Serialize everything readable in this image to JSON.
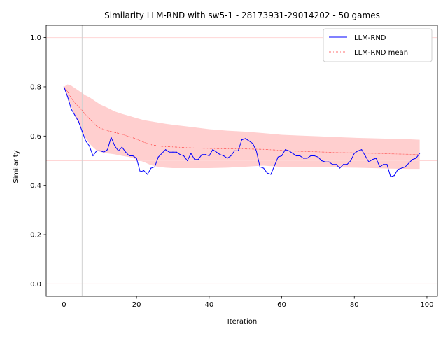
{
  "chart_data": {
    "type": "line",
    "title": "Similarity LLM-RND with sw5-1 - 28173931-29014202 - 50 games",
    "xlabel": "Iteration",
    "ylabel": "Similarity",
    "xlim": [
      -4.9,
      102.9
    ],
    "ylim": [
      -0.05,
      1.05
    ],
    "x_ticks": [
      0,
      20,
      40,
      60,
      80,
      100
    ],
    "y_ticks": [
      0.0,
      0.2,
      0.4,
      0.6,
      0.8,
      1.0
    ],
    "x_tick_labels": [
      "0",
      "20",
      "40",
      "60",
      "80",
      "100"
    ],
    "y_tick_labels": [
      "0.0",
      "0.2",
      "0.4",
      "0.6",
      "0.8",
      "1.0"
    ],
    "hlines": [
      0.0,
      0.5,
      1.0
    ],
    "vline": 5,
    "legend_position": "top-right",
    "legend": [
      "LLM-RND",
      "LLM-RND mean"
    ],
    "colors": {
      "series": "#0000ff",
      "mean": "#ff4040",
      "band": "#ffcccc",
      "guide_red": "#ffd6d6",
      "guide_gray": "#d0d0d0"
    },
    "series": [
      {
        "name": "LLM-RND",
        "x": [
          0,
          1,
          2,
          3,
          4,
          5,
          6,
          7,
          8,
          9,
          10,
          11,
          12,
          13,
          14,
          15,
          16,
          17,
          18,
          19,
          20,
          21,
          22,
          23,
          24,
          25,
          26,
          27,
          28,
          29,
          30,
          31,
          32,
          33,
          34,
          35,
          36,
          37,
          38,
          39,
          40,
          41,
          42,
          43,
          44,
          45,
          46,
          47,
          48,
          49,
          50,
          51,
          52,
          53,
          54,
          55,
          56,
          57,
          58,
          59,
          60,
          61,
          62,
          63,
          64,
          65,
          66,
          67,
          68,
          69,
          70,
          71,
          72,
          73,
          74,
          75,
          76,
          77,
          78,
          79,
          80,
          81,
          82,
          83,
          84,
          85,
          86,
          87,
          88,
          89,
          90,
          91,
          92,
          93,
          94,
          95,
          96,
          97,
          98
        ],
        "values": [
          0.8,
          0.76,
          0.71,
          0.685,
          0.66,
          0.62,
          0.58,
          0.56,
          0.52,
          0.54,
          0.54,
          0.535,
          0.545,
          0.595,
          0.56,
          0.54,
          0.555,
          0.535,
          0.52,
          0.52,
          0.51,
          0.455,
          0.46,
          0.445,
          0.47,
          0.475,
          0.515,
          0.53,
          0.545,
          0.535,
          0.535,
          0.535,
          0.525,
          0.52,
          0.5,
          0.53,
          0.505,
          0.505,
          0.525,
          0.525,
          0.52,
          0.545,
          0.535,
          0.525,
          0.52,
          0.51,
          0.52,
          0.54,
          0.54,
          0.585,
          0.59,
          0.58,
          0.57,
          0.54,
          0.475,
          0.47,
          0.45,
          0.445,
          0.48,
          0.515,
          0.52,
          0.545,
          0.54,
          0.53,
          0.52,
          0.52,
          0.51,
          0.51,
          0.52,
          0.52,
          0.515,
          0.5,
          0.495,
          0.495,
          0.485,
          0.485,
          0.47,
          0.485,
          0.485,
          0.5,
          0.53,
          0.54,
          0.545,
          0.52,
          0.495,
          0.505,
          0.51,
          0.475,
          0.485,
          0.485,
          0.435,
          0.44,
          0.465,
          0.47,
          0.475,
          0.49,
          0.505,
          0.51,
          0.53
        ]
      },
      {
        "name": "LLM-RND mean",
        "x": [
          0,
          1,
          2,
          3,
          4,
          5,
          6,
          7,
          8,
          9,
          10,
          12,
          14,
          16,
          18,
          20,
          22,
          24,
          26,
          28,
          30,
          35,
          40,
          45,
          50,
          55,
          60,
          65,
          70,
          75,
          80,
          85,
          90,
          95,
          98
        ],
        "values": [
          0.8,
          0.78,
          0.755,
          0.735,
          0.72,
          0.705,
          0.685,
          0.67,
          0.655,
          0.64,
          0.632,
          0.622,
          0.615,
          0.607,
          0.598,
          0.588,
          0.575,
          0.565,
          0.56,
          0.557,
          0.556,
          0.552,
          0.55,
          0.548,
          0.548,
          0.546,
          0.542,
          0.538,
          0.536,
          0.533,
          0.532,
          0.53,
          0.528,
          0.526,
          0.525
        ]
      }
    ],
    "band": {
      "x": [
        0,
        1,
        2,
        3,
        4,
        5,
        6,
        7,
        8,
        9,
        10,
        12,
        14,
        16,
        18,
        20,
        22,
        24,
        26,
        28,
        30,
        35,
        40,
        45,
        50,
        55,
        60,
        65,
        70,
        75,
        80,
        85,
        90,
        95,
        98
      ],
      "upper": [
        0.8,
        0.81,
        0.805,
        0.795,
        0.785,
        0.775,
        0.765,
        0.758,
        0.748,
        0.738,
        0.728,
        0.715,
        0.7,
        0.69,
        0.682,
        0.673,
        0.665,
        0.66,
        0.655,
        0.65,
        0.646,
        0.637,
        0.628,
        0.622,
        0.618,
        0.612,
        0.605,
        0.602,
        0.599,
        0.596,
        0.593,
        0.591,
        0.589,
        0.587,
        0.585
      ],
      "lower": [
        0.8,
        0.76,
        0.72,
        0.68,
        0.655,
        0.625,
        0.59,
        0.57,
        0.555,
        0.542,
        0.536,
        0.53,
        0.526,
        0.52,
        0.515,
        0.505,
        0.495,
        0.482,
        0.475,
        0.472,
        0.47,
        0.47,
        0.47,
        0.472,
        0.476,
        0.48,
        0.475,
        0.473,
        0.473,
        0.473,
        0.472,
        0.47,
        0.468,
        0.467,
        0.467
      ]
    }
  }
}
